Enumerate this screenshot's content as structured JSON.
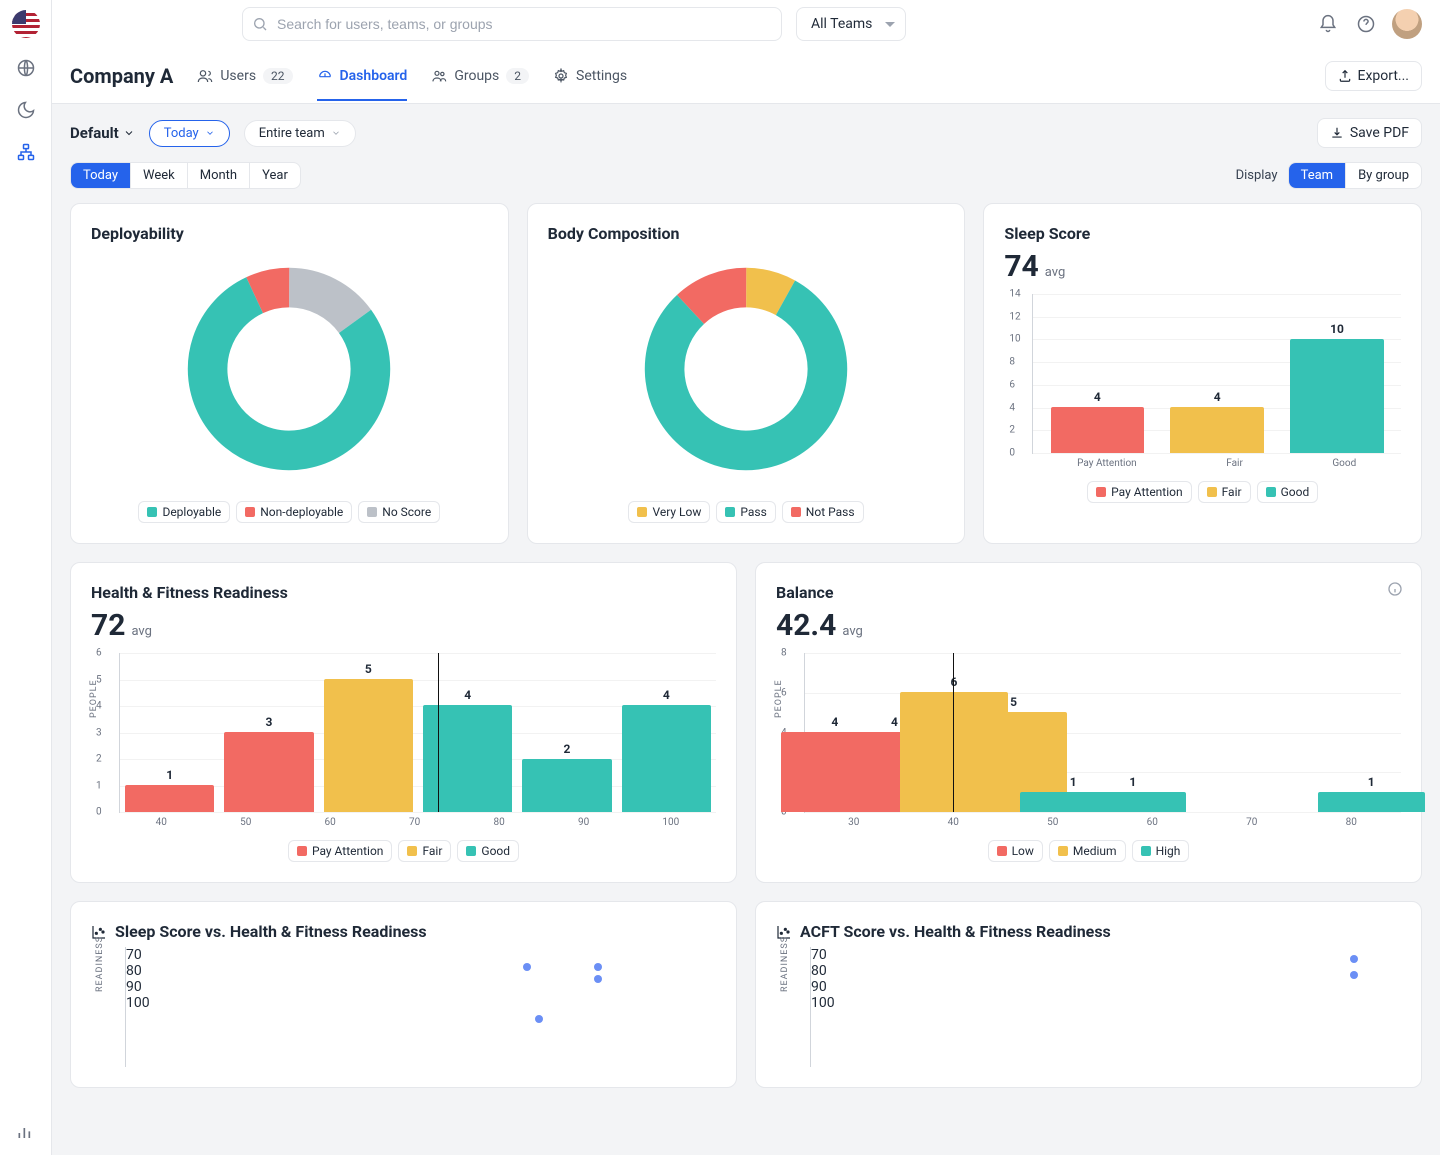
{
  "colors": {
    "teal": "#36c2b4",
    "red": "#f26a63",
    "yellow": "#f1c04c",
    "gray": "#bcc1c8",
    "blue": "#2563eb",
    "scatter": "#6b8ff5",
    "grid": "#e5e7eb",
    "bg": "#f3f4f6"
  },
  "search_placeholder": "Search for users, teams, or groups",
  "team_dropdown": "All Teams",
  "company": "Company A",
  "tabs": {
    "users": {
      "label": "Users",
      "count": "22"
    },
    "dashboard": {
      "label": "Dashboard"
    },
    "groups": {
      "label": "Groups",
      "count": "2"
    },
    "settings": {
      "label": "Settings"
    }
  },
  "export_label": "Export...",
  "filters": {
    "view": "Default",
    "date_pill": "Today",
    "scope_pill": "Entire team",
    "savepdf": "Save PDF",
    "range": [
      "Today",
      "Week",
      "Month",
      "Year"
    ],
    "display_label": "Display",
    "display_opts": [
      "Team",
      "By group"
    ]
  },
  "deployability": {
    "title": "Deployability",
    "type": "donut",
    "segments": [
      {
        "label": "Deployable",
        "value": 78,
        "color": "#36c2b4"
      },
      {
        "label": "Non-deployable",
        "value": 7,
        "color": "#f26a63"
      },
      {
        "label": "No Score",
        "value": 15,
        "color": "#bcc1c8"
      }
    ]
  },
  "body_comp": {
    "title": "Body Composition",
    "type": "donut",
    "segments": [
      {
        "label": "Very Low",
        "value": 8,
        "color": "#f1c04c"
      },
      {
        "label": "Pass",
        "value": 80,
        "color": "#36c2b4"
      },
      {
        "label": "Not Pass",
        "value": 12,
        "color": "#f26a63"
      }
    ]
  },
  "sleep": {
    "title": "Sleep Score",
    "avg": "74",
    "avg_label": "avg",
    "type": "bar",
    "ymax": 14,
    "ystep": 2,
    "categories": [
      "Pay Attention",
      "Fair",
      "Good"
    ],
    "values": [
      4,
      4,
      10
    ],
    "bar_colors": [
      "#f26a63",
      "#f1c04c",
      "#36c2b4"
    ],
    "legend": [
      {
        "label": "Pay Attention",
        "color": "#f26a63"
      },
      {
        "label": "Fair",
        "color": "#f1c04c"
      },
      {
        "label": "Good",
        "color": "#36c2b4"
      }
    ]
  },
  "hfr": {
    "title": "Health & Fitness Readiness",
    "avg": "72",
    "avg_label": "avg",
    "ylabel": "PEOPLE",
    "type": "histogram",
    "ymax": 6,
    "ystep": 1,
    "xticks": [
      "40",
      "50",
      "60",
      "70",
      "80",
      "90",
      "100"
    ],
    "vline_x": 72,
    "bars": [
      {
        "x": 45,
        "v": 1,
        "color": "#f26a63"
      },
      {
        "x": 55,
        "v": 3,
        "color": "#f26a63"
      },
      {
        "x": 65,
        "v": 5,
        "color": "#f1c04c"
      },
      {
        "x": 75,
        "v": 4,
        "color": "#36c2b4"
      },
      {
        "x": 85,
        "v": 2,
        "color": "#36c2b4"
      },
      {
        "x": 95,
        "v": 4,
        "color": "#36c2b4"
      }
    ],
    "legend": [
      {
        "label": "Pay Attention",
        "color": "#f26a63"
      },
      {
        "label": "Fair",
        "color": "#f1c04c"
      },
      {
        "label": "Good",
        "color": "#36c2b4"
      }
    ]
  },
  "balance": {
    "title": "Balance",
    "avg": "42.4",
    "avg_label": "avg",
    "ylabel": "PEOPLE",
    "type": "histogram",
    "ymax": 8,
    "ystep": 2,
    "xticks": [
      "30",
      "40",
      "50",
      "60",
      "70",
      "80"
    ],
    "vline_x": 42.4,
    "bars": [
      {
        "x": 32.5,
        "v": 4,
        "color": "#f26a63"
      },
      {
        "x": 37.5,
        "v": 4,
        "color": "#f26a63"
      },
      {
        "x": 42.5,
        "v": 6,
        "color": "#f1c04c"
      },
      {
        "x": 47.5,
        "v": 5,
        "color": "#f1c04c"
      },
      {
        "x": 52.5,
        "v": 1,
        "color": "#36c2b4"
      },
      {
        "x": 57.5,
        "v": 1,
        "color": "#36c2b4"
      },
      {
        "x": 77.5,
        "v": 1,
        "color": "#36c2b4"
      }
    ],
    "legend": [
      {
        "label": "Low",
        "color": "#f26a63"
      },
      {
        "label": "Medium",
        "color": "#f1c04c"
      },
      {
        "label": "High",
        "color": "#36c2b4"
      }
    ]
  },
  "scatter1": {
    "title": "Sleep Score vs. Health & Fitness Readiness",
    "ylabel": "READINESS",
    "ymin": 70,
    "ymax": 100,
    "ystep": 10,
    "xrange": [
      0,
      100
    ],
    "points": [
      [
        68,
        95
      ],
      [
        80,
        95
      ],
      [
        80,
        92
      ],
      [
        70,
        82
      ]
    ],
    "color": "#6b8ff5"
  },
  "scatter2": {
    "title": "ACFT Score vs. Health & Fitness Readiness",
    "ylabel": "READINESS",
    "ymin": 70,
    "ymax": 100,
    "ystep": 10,
    "xrange": [
      0,
      100
    ],
    "points": [
      [
        92,
        97
      ],
      [
        92,
        93
      ]
    ],
    "color": "#6b8ff5"
  }
}
